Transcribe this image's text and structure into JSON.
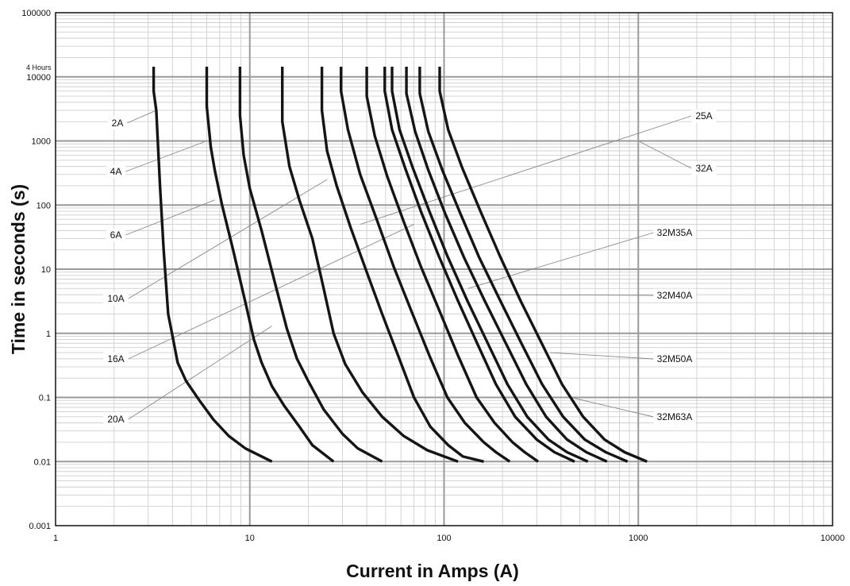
{
  "chart_data": {
    "type": "line",
    "xlabel": "Current in Amps (A)",
    "ylabel": "Time in seconds (s)",
    "x_scale": "log",
    "y_scale": "log",
    "xlim": [
      1,
      10000
    ],
    "ylim": [
      0.001,
      100000
    ],
    "x_ticks": [
      "1",
      "10",
      "100",
      "1000",
      "10000"
    ],
    "y_ticks": [
      "0.001",
      "0.01",
      "0.1",
      "1",
      "10",
      "100",
      "1000",
      "10000",
      "100000"
    ],
    "annotations": [
      {
        "text": "4 Hours",
        "y": 14400
      }
    ],
    "grid": true,
    "legend": "none",
    "series": [
      {
        "name": "2A",
        "points": [
          [
            3.2,
            14400
          ],
          [
            3.2,
            6000
          ],
          [
            3.3,
            3000
          ],
          [
            3.45,
            200
          ],
          [
            3.6,
            20
          ],
          [
            3.8,
            2
          ],
          [
            4.0,
            0.9
          ],
          [
            4.25,
            0.35
          ],
          [
            4.7,
            0.18
          ],
          [
            5.5,
            0.09
          ],
          [
            6.5,
            0.045
          ],
          [
            7.8,
            0.025
          ],
          [
            9.5,
            0.016
          ],
          [
            13,
            0.01
          ]
        ]
      },
      {
        "name": "4A",
        "points": [
          [
            6,
            14400
          ],
          [
            6,
            3500
          ],
          [
            6.3,
            800
          ],
          [
            6.6,
            350
          ],
          [
            7.2,
            100
          ],
          [
            8.2,
            20
          ],
          [
            9.5,
            3
          ],
          [
            10.5,
            0.8
          ],
          [
            11.5,
            0.35
          ],
          [
            13,
            0.15
          ],
          [
            15,
            0.075
          ],
          [
            18,
            0.035
          ],
          [
            21,
            0.018
          ],
          [
            27,
            0.01
          ]
        ]
      },
      {
        "name": "6A",
        "points": [
          [
            8.9,
            14400
          ],
          [
            8.9,
            2500
          ],
          [
            9.3,
            600
          ],
          [
            10,
            180
          ],
          [
            11.5,
            40
          ],
          [
            13.5,
            6
          ],
          [
            15.5,
            1.2
          ],
          [
            17.5,
            0.4
          ],
          [
            20,
            0.18
          ],
          [
            24,
            0.065
          ],
          [
            30,
            0.027
          ],
          [
            36,
            0.016
          ],
          [
            48,
            0.01
          ]
        ]
      },
      {
        "name": "10A",
        "points": [
          [
            14.7,
            14400
          ],
          [
            14.7,
            2000
          ],
          [
            16,
            400
          ],
          [
            18,
            120
          ],
          [
            21,
            30
          ],
          [
            24,
            5
          ],
          [
            27,
            1
          ],
          [
            31,
            0.33
          ],
          [
            38,
            0.12
          ],
          [
            48,
            0.05
          ],
          [
            62,
            0.025
          ],
          [
            82,
            0.015
          ],
          [
            118,
            0.01
          ]
        ]
      },
      {
        "name": "16A",
        "points": [
          [
            23.5,
            14400
          ],
          [
            23.5,
            3000
          ],
          [
            25,
            700
          ],
          [
            28,
            200
          ],
          [
            33,
            45
          ],
          [
            40,
            9
          ],
          [
            48,
            2
          ],
          [
            58,
            0.45
          ],
          [
            70,
            0.1
          ],
          [
            85,
            0.035
          ],
          [
            105,
            0.018
          ],
          [
            125,
            0.012
          ],
          [
            160,
            0.01
          ]
        ]
      },
      {
        "name": "20A",
        "points": [
          [
            29.5,
            14400
          ],
          [
            29.5,
            6000
          ],
          [
            32,
            1500
          ],
          [
            37,
            300
          ],
          [
            45,
            60
          ],
          [
            55,
            11
          ],
          [
            68,
            2.2
          ],
          [
            84,
            0.45
          ],
          [
            104,
            0.1
          ],
          [
            128,
            0.04
          ],
          [
            160,
            0.02
          ],
          [
            185,
            0.014
          ],
          [
            218,
            0.01
          ]
        ]
      },
      {
        "name": "25A",
        "points": [
          [
            40,
            14400
          ],
          [
            40,
            5000
          ],
          [
            44,
            1200
          ],
          [
            51,
            280
          ],
          [
            62,
            55
          ],
          [
            76,
            11
          ],
          [
            95,
            2.2
          ],
          [
            118,
            0.45
          ],
          [
            147,
            0.1
          ],
          [
            182,
            0.04
          ],
          [
            225,
            0.02
          ],
          [
            260,
            0.014
          ],
          [
            305,
            0.01
          ]
        ]
      },
      {
        "name": "32A",
        "points": [
          [
            49.5,
            14400
          ],
          [
            49.5,
            6000
          ],
          [
            54,
            1500
          ],
          [
            63,
            380
          ],
          [
            76,
            80
          ],
          [
            94,
            16
          ],
          [
            118,
            3.2
          ],
          [
            148,
            0.7
          ],
          [
            185,
            0.16
          ],
          [
            232,
            0.05
          ],
          [
            300,
            0.022
          ],
          [
            370,
            0.014
          ],
          [
            470,
            0.01
          ]
        ]
      },
      {
        "name": "32M35A",
        "points": [
          [
            54,
            14400
          ],
          [
            54,
            6000
          ],
          [
            59,
            1500
          ],
          [
            69,
            380
          ],
          [
            84,
            80
          ],
          [
            104,
            16
          ],
          [
            132,
            3.2
          ],
          [
            168,
            0.7
          ],
          [
            212,
            0.16
          ],
          [
            268,
            0.05
          ],
          [
            345,
            0.022
          ],
          [
            430,
            0.014
          ],
          [
            550,
            0.01
          ]
        ]
      },
      {
        "name": "32M40A",
        "points": [
          [
            64,
            14400
          ],
          [
            64,
            5500
          ],
          [
            71,
            1400
          ],
          [
            83,
            350
          ],
          [
            101,
            75
          ],
          [
            127,
            15
          ],
          [
            162,
            3.2
          ],
          [
            208,
            0.7
          ],
          [
            265,
            0.16
          ],
          [
            335,
            0.05
          ],
          [
            430,
            0.022
          ],
          [
            540,
            0.014
          ],
          [
            690,
            0.01
          ]
        ]
      },
      {
        "name": "32M50A",
        "points": [
          [
            75,
            14400
          ],
          [
            75,
            5500
          ],
          [
            83,
            1400
          ],
          [
            98,
            350
          ],
          [
            121,
            75
          ],
          [
            152,
            15
          ],
          [
            195,
            3.2
          ],
          [
            250,
            0.7
          ],
          [
            320,
            0.16
          ],
          [
            410,
            0.05
          ],
          [
            530,
            0.022
          ],
          [
            680,
            0.014
          ],
          [
            880,
            0.01
          ]
        ]
      },
      {
        "name": "32M63A",
        "points": [
          [
            95,
            14400
          ],
          [
            95,
            6000
          ],
          [
            105,
            1500
          ],
          [
            124,
            380
          ],
          [
            154,
            80
          ],
          [
            194,
            16
          ],
          [
            248,
            3.2
          ],
          [
            318,
            0.7
          ],
          [
            405,
            0.16
          ],
          [
            520,
            0.05
          ],
          [
            670,
            0.022
          ],
          [
            850,
            0.014
          ],
          [
            1110,
            0.01
          ]
        ]
      }
    ],
    "labels": [
      {
        "text": "2A",
        "x": 3.3,
        "y": 3000
      },
      {
        "text": "4A",
        "x": 6.0,
        "y": 1000
      },
      {
        "text": "6A",
        "x": 6.6,
        "y": 120
      },
      {
        "text": "10A",
        "x": 25,
        "y": 250
      },
      {
        "text": "16A",
        "x": 70,
        "y": 50
      },
      {
        "text": "20A",
        "x": 13,
        "y": 1.3
      },
      {
        "text": "25A",
        "x": 37,
        "y": 50
      },
      {
        "text": "32A",
        "x": 1000,
        "y": 1000
      },
      {
        "text": "32M35A",
        "x": 133,
        "y": 5
      },
      {
        "text": "32M40A",
        "x": 190,
        "y": 4
      },
      {
        "text": "32M50A",
        "x": 350,
        "y": 0.5
      },
      {
        "text": "32M63A",
        "x": 450,
        "y": 0.1
      }
    ]
  }
}
